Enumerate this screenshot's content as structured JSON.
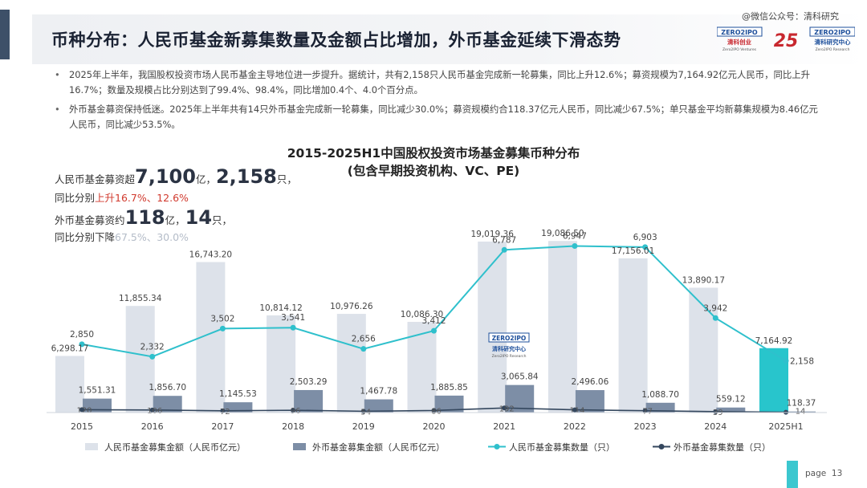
{
  "header": {
    "title": "币种分布：人民币基金新募集数量及金额占比增加，外币基金延续下滑态势",
    "watermark": "@微信公众号：清科研究",
    "logo_left_top": "ZERO2IPO",
    "logo_left_cn": "清科创业",
    "logo_left_en": "Zero2IPO Ventures",
    "logo_mid": "25",
    "logo_right_top": "ZERO2IPO",
    "logo_right_cn": "清科研究中心",
    "logo_right_en": "Zero2IPO Research"
  },
  "bullets": [
    "2025年上半年，我国股权投资市场人民币基金主导地位进一步提升。据统计，共有2,158只人民币基金完成新一轮募集，同比上升12.6%；募资规模为7,164.92亿元人民币，同比上升16.7%；数量及规模占比分别达到了99.4%、98.4%，同比增加0.4个、4.0个百分点。",
    "外币基金募资保持低迷。2025年上半年共有14只外币基金完成新一轮募集，同比减少30.0%；募资规模约合118.37亿元人民币，同比减少67.5%；单只基金平均新募集规模为8.46亿元人民币，同比减少53.5%。"
  ],
  "callouts": {
    "rmb_line1_a": "人民币基金募资超",
    "rmb_amount": "7,100",
    "rmb_line1_b": "亿，",
    "rmb_count": "2,158",
    "rmb_line1_c": "只，",
    "rmb_line2_a": "同比分别",
    "rmb_line2_b": "上升16.7%、12.6%",
    "fx_line1_a": "外币基金募资约",
    "fx_amount": "118",
    "fx_line1_b": "亿，",
    "fx_count": "14",
    "fx_line1_c": "只，",
    "fx_line2_a": "同比分别下降",
    "fx_line2_b": "67.5%、30.0%"
  },
  "watermark_logo": {
    "top": "ZERO2IPO",
    "cn": "清科研究中心",
    "en": "Zero2IPO Research"
  },
  "page": {
    "label": "page",
    "number": "13"
  },
  "colors": {
    "rmb_amount_bar": "#dde2ea",
    "rmb_amount_bar_highlight": "#28c5cc",
    "fx_amount_bar": "#7d8ea6",
    "rmb_count_line": "#2fc0cc",
    "fx_count_line": "#34475e"
  },
  "chart_data": {
    "type": "bar+line",
    "title": "2015-2025H1中国股权投资市场基金募集币种分布",
    "subtitle": "(包含早期投资机构、VC、PE)",
    "categories": [
      "2015",
      "2016",
      "2017",
      "2018",
      "2019",
      "2020",
      "2021",
      "2022",
      "2023",
      "2024",
      "2025H1"
    ],
    "series": [
      {
        "name": "人民币基金募集金额（人民币亿元）",
        "kind": "bar",
        "axis": "amount",
        "values": [
          6298.17,
          11855.34,
          16743.2,
          10814.12,
          10976.26,
          10086.3,
          19019.36,
          19086.5,
          17156.01,
          13890.17,
          7164.92
        ],
        "labels": [
          "6,298.17",
          "11,855.34",
          "16,743.20",
          "10,814.12",
          "10,976.26",
          "10,086.30",
          "19,019.36",
          "19,086.50",
          "17,156.01",
          "13,890.17",
          "7,164.92"
        ]
      },
      {
        "name": "外币基金募集金额（人民币亿元）",
        "kind": "bar",
        "axis": "amount",
        "values": [
          1551.31,
          1856.7,
          1145.53,
          2503.29,
          1467.78,
          1885.85,
          3065.84,
          2496.06,
          1088.7,
          559.12,
          118.37
        ],
        "labels": [
          "1,551.31",
          "1,856.70",
          "1,145.53",
          "2,503.29",
          "1,467.78",
          "1,885.85",
          "3,065.84",
          "2,496.06",
          "1,088.70",
          "559.12",
          "118.37"
        ]
      },
      {
        "name": "人民币基金募集数量（只）",
        "kind": "line",
        "axis": "count",
        "values": [
          2850,
          2332,
          3502,
          3541,
          2656,
          3412,
          6787,
          6947,
          6903,
          3942,
          2158
        ],
        "labels": [
          "2,850",
          "2,332",
          "3,502",
          "3,541",
          "2,656",
          "3,412",
          "6,787",
          "6,947",
          "6,903",
          "3,942",
          "2,158"
        ]
      },
      {
        "name": "外币基金募集数量（只）",
        "kind": "line",
        "axis": "count",
        "values": [
          120,
          106,
          72,
          96,
          54,
          86,
          192,
          114,
          77,
          39,
          14
        ],
        "labels": [
          "120",
          "106",
          "72",
          "96",
          "54",
          "86",
          "192",
          "114",
          "77",
          "39",
          "14"
        ]
      }
    ],
    "amount_ylim": [
      0,
      20000
    ],
    "count_ylim": [
      0,
      7500
    ],
    "grid": false,
    "legend_position": "bottom"
  }
}
